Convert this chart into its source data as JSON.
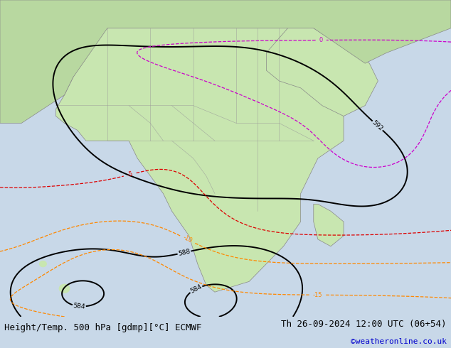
{
  "title_left": "Height/Temp. 500 hPa [gdmp][°C] ECMWF",
  "title_right": "Th 26-09-2024 12:00 UTC (06+54)",
  "credit": "©weatheronline.co.uk",
  "figsize": [
    6.34,
    4.9
  ],
  "dpi": 100,
  "bg_color": "#c8d8e8",
  "land_color": "#c8e6b0",
  "land_color2": "#b8d8a0",
  "ocean_color": "#c8d8e8",
  "contour_color_black": "#000000",
  "contour_color_red": "#dd0000",
  "contour_color_orange": "#ff8800",
  "contour_color_magenta": "#cc00cc",
  "bottom_bar_color": "#e0e0e0",
  "bottom_text_color": "#000000",
  "credit_color": "#0000cc",
  "font_size_title": 9,
  "font_size_credit": 8,
  "font_size_label": 7
}
